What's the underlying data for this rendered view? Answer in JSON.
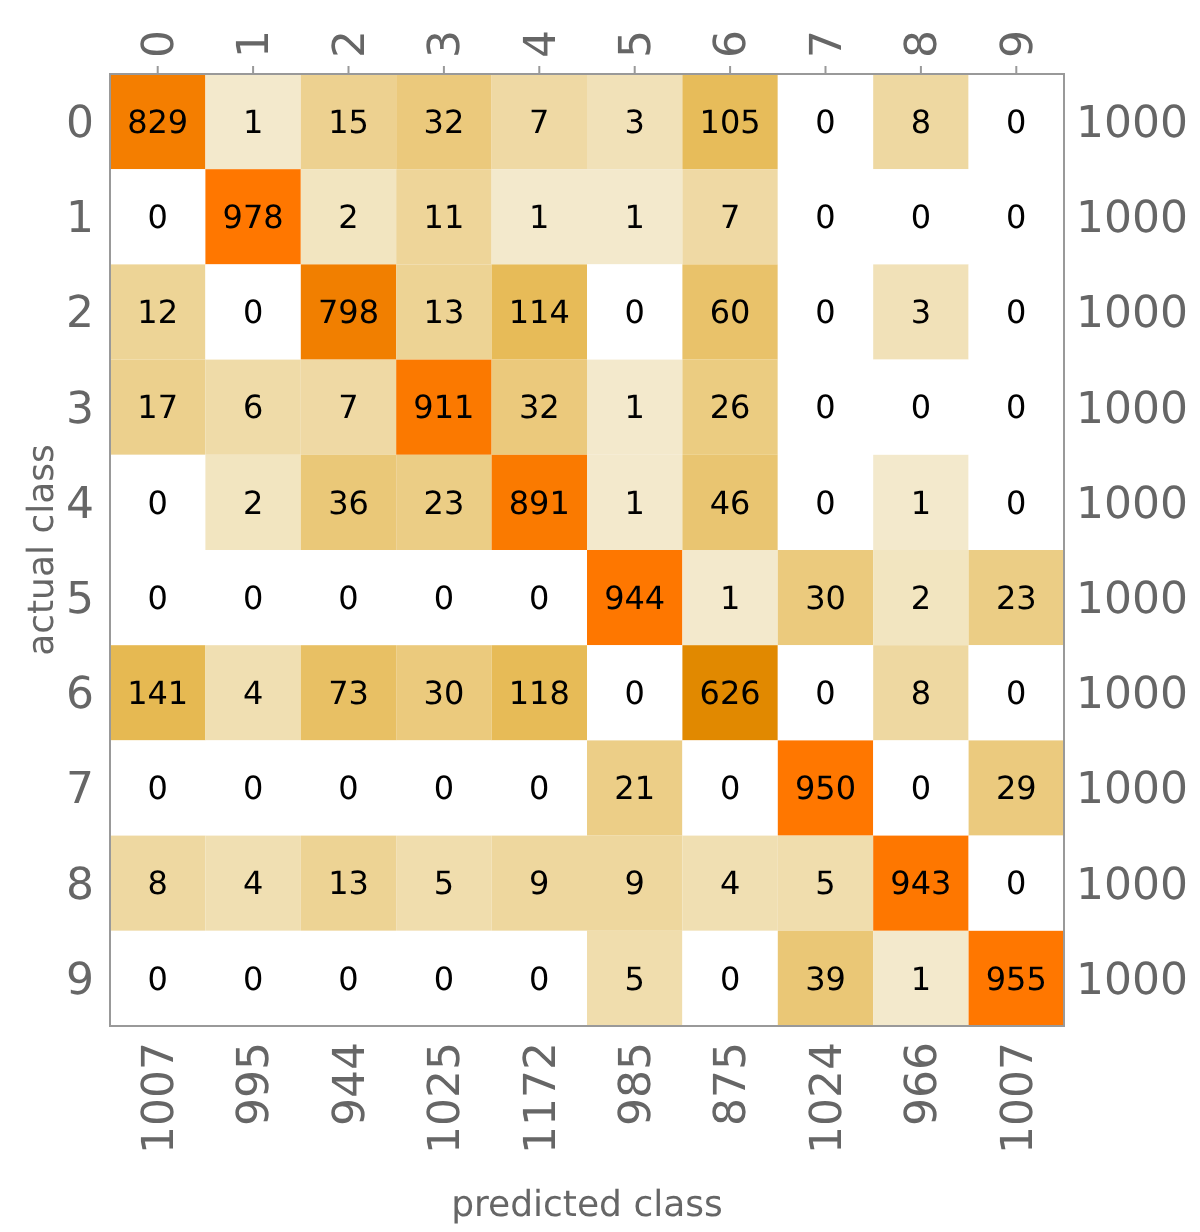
{
  "chart_data": {
    "type": "heatmap",
    "xlabel": "predicted class",
    "ylabel": "actual class",
    "categories": [
      "0",
      "1",
      "2",
      "3",
      "4",
      "5",
      "6",
      "7",
      "8",
      "9"
    ],
    "y_categories": [
      "0",
      "1",
      "2",
      "3",
      "4",
      "5",
      "6",
      "7",
      "8",
      "9"
    ],
    "y2_categories": [
      "1000",
      "1000",
      "1000",
      "1000",
      "1000",
      "1000",
      "1000",
      "1000",
      "1000",
      "1000"
    ],
    "cells": [
      [
        829,
        1,
        15,
        32,
        7,
        3,
        105,
        0,
        8,
        0
      ],
      [
        0,
        978,
        2,
        11,
        1,
        1,
        7,
        0,
        0,
        0
      ],
      [
        12,
        0,
        798,
        13,
        114,
        0,
        60,
        0,
        3,
        0
      ],
      [
        17,
        6,
        7,
        911,
        32,
        1,
        26,
        0,
        0,
        0
      ],
      [
        0,
        2,
        36,
        23,
        891,
        1,
        46,
        0,
        1,
        0
      ],
      [
        0,
        0,
        0,
        0,
        0,
        944,
        1,
        30,
        2,
        23
      ],
      [
        141,
        4,
        73,
        30,
        118,
        0,
        626,
        0,
        8,
        0
      ],
      [
        0,
        0,
        0,
        0,
        0,
        21,
        0,
        950,
        0,
        29
      ],
      [
        8,
        4,
        13,
        5,
        9,
        9,
        4,
        5,
        943,
        0
      ],
      [
        0,
        0,
        0,
        0,
        0,
        5,
        0,
        39,
        1,
        955
      ]
    ],
    "data_labels": true,
    "annotations": [
      "1007",
      "995",
      "944",
      "1025",
      "1172",
      "985",
      "875",
      "1024",
      "966",
      "1007"
    ]
  }
}
